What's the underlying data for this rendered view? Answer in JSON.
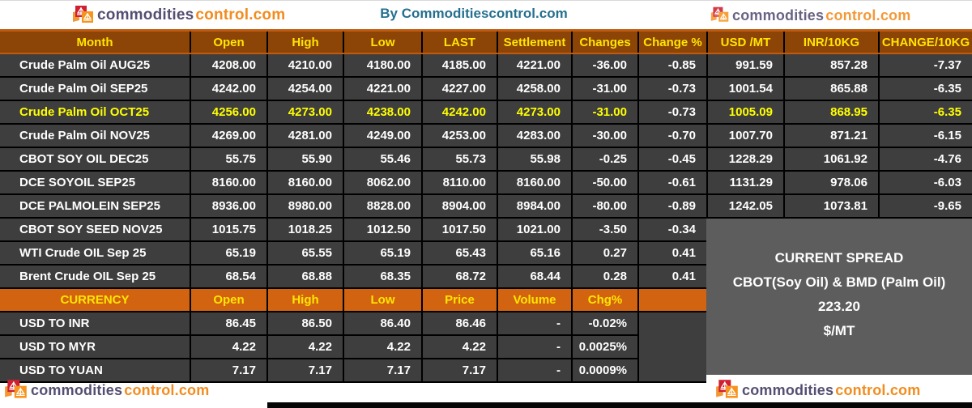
{
  "brand": {
    "name_part1": "commodities",
    "name_part2": "control.com",
    "byline": "By Commoditiescontrol.com"
  },
  "futures_table": {
    "headers": [
      "Month",
      "Open",
      "High",
      "Low",
      "LAST",
      "Settlement",
      "Changes",
      "Change %",
      "USD /MT",
      "INR/10KG",
      "CHANGE/10KG"
    ],
    "rows": [
      {
        "cells": [
          "Crude Palm Oil AUG25",
          "4208.00",
          "4210.00",
          "4180.00",
          "4185.00",
          "4221.00",
          "-36.00",
          "-0.85",
          "991.59",
          "857.28",
          "-7.37"
        ],
        "highlight": false,
        "plain_cols": []
      },
      {
        "cells": [
          "Crude Palm Oil SEP25",
          "4242.00",
          "4254.00",
          "4221.00",
          "4227.00",
          "4258.00",
          "-31.00",
          "-0.73",
          "1001.54",
          "865.88",
          "-6.35"
        ],
        "highlight": false,
        "plain_cols": []
      },
      {
        "cells": [
          "Crude Palm Oil OCT25",
          "4256.00",
          "4273.00",
          "4238.00",
          "4242.00",
          "4273.00",
          "-31.00",
          "-0.73",
          "1005.09",
          "868.95",
          "-6.35"
        ],
        "highlight": true,
        "plain_cols": [
          7
        ]
      },
      {
        "cells": [
          "Crude Palm Oil NOV25",
          "4269.00",
          "4281.00",
          "4249.00",
          "4253.00",
          "4283.00",
          "-30.00",
          "-0.70",
          "1007.70",
          "871.21",
          "-6.15"
        ],
        "highlight": false,
        "plain_cols": []
      },
      {
        "cells": [
          "CBOT SOY OIL DEC25",
          "55.75",
          "55.90",
          "55.46",
          "55.73",
          "55.98",
          "-0.25",
          "-0.45",
          "1228.29",
          "1061.92",
          "-4.76"
        ],
        "highlight": false,
        "plain_cols": []
      },
      {
        "cells": [
          "DCE SOYOIL SEP25",
          "8160.00",
          "8160.00",
          "8062.00",
          "8110.00",
          "8160.00",
          "-50.00",
          "-0.61",
          "1131.29",
          "978.06",
          "-6.03"
        ],
        "highlight": false,
        "plain_cols": []
      },
      {
        "cells": [
          "DCE PALMOLEIN SEP25",
          "8936.00",
          "8980.00",
          "8828.00",
          "8904.00",
          "8984.00",
          "-80.00",
          "-0.89",
          "1242.05",
          "1073.81",
          "-9.65"
        ],
        "highlight": false,
        "plain_cols": []
      },
      {
        "cells": [
          "CBOT SOY SEED NOV25",
          "1015.75",
          "1018.25",
          "1012.50",
          "1017.50",
          "1021.00",
          "-3.50",
          "-0.34",
          "",
          "",
          ""
        ],
        "highlight": false,
        "plain_cols": []
      },
      {
        "cells": [
          "WTI Crude OIL Sep 25",
          "65.19",
          "65.55",
          "65.19",
          "65.43",
          "65.16",
          "0.27",
          "0.41",
          "",
          "",
          ""
        ],
        "highlight": false,
        "plain_cols": []
      },
      {
        "cells": [
          "Brent Crude OIL Sep 25",
          "68.54",
          "68.88",
          "68.35",
          "68.72",
          "68.44",
          "0.28",
          "0.41",
          "",
          "",
          ""
        ],
        "highlight": false,
        "plain_cols": []
      }
    ]
  },
  "currency_table": {
    "headers": [
      "CURRENCY",
      "Open",
      "High",
      "Low",
      "Price",
      "Volume",
      "Chg%",
      ""
    ],
    "rows": [
      {
        "cells": [
          "USD TO INR",
          "86.45",
          "86.50",
          "86.40",
          "86.46",
          "-",
          "-0.02%"
        ]
      },
      {
        "cells": [
          "USD TO MYR",
          "4.22",
          "4.22",
          "4.22",
          "4.22",
          "-",
          "0.0025%"
        ]
      },
      {
        "cells": [
          "USD TO YUAN",
          "7.17",
          "7.17",
          "7.17",
          "7.17",
          "-",
          "0.0009%"
        ]
      }
    ]
  },
  "spread_box": {
    "title": "CURRENT SPREAD",
    "subtitle": "CBOT(Soy Oil) & BMD (Palm Oil)",
    "value": "223.20",
    "unit": "$/MT"
  },
  "colors": {
    "header_bg": "#8C4507",
    "currency_header_bg": "#D26310",
    "cell_bg": "#3E3E3E",
    "header_text": "#FFE600",
    "highlight_text": "#FFFF00",
    "spread_bg": "#5D5D5D",
    "accent_line": "#C05A0E",
    "byline_color": "#25708F",
    "logo_purple": "#544E72",
    "logo_orange": "#F28C1E"
  }
}
